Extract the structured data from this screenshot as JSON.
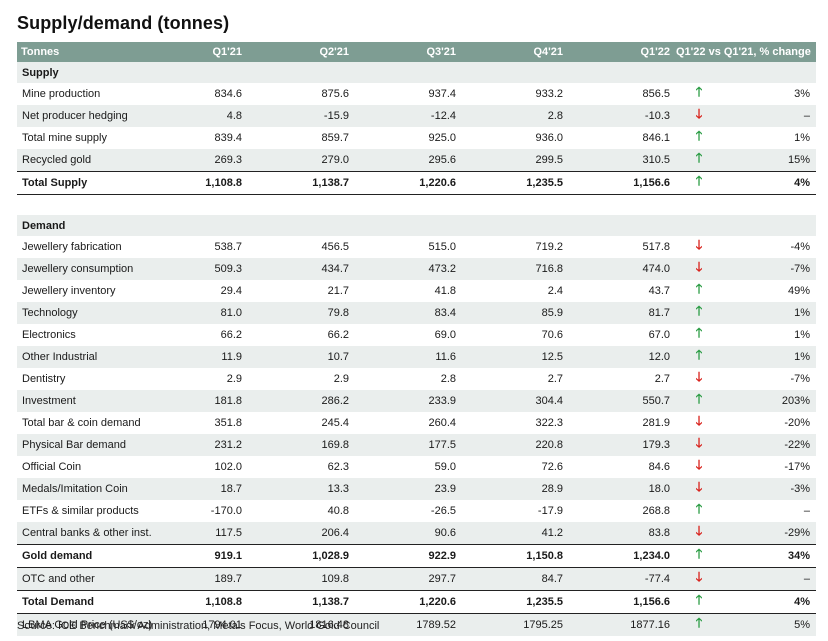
{
  "title": "Supply/demand (tonnes)",
  "header": {
    "label": "Tonnes",
    "cols": [
      "Q1'21",
      "Q2'21",
      "Q3'21",
      "Q4'21",
      "Q1'22"
    ],
    "change": "Q1'22 vs Q1'21, % change"
  },
  "supply": {
    "heading": "Supply",
    "rows": [
      {
        "label": "Mine production",
        "v": [
          "834.6",
          "875.6",
          "937.4",
          "933.2",
          "856.5"
        ],
        "dir": "up",
        "pct": "3%"
      },
      {
        "label": "Net producer hedging",
        "v": [
          "4.8",
          "-15.9",
          "-12.4",
          "2.8",
          "-10.3"
        ],
        "dir": "down",
        "pct": "–"
      },
      {
        "label": "Total mine supply",
        "v": [
          "839.4",
          "859.7",
          "925.0",
          "936.0",
          "846.1"
        ],
        "dir": "up",
        "pct": "1%"
      },
      {
        "label": "Recycled gold",
        "v": [
          "269.3",
          "279.0",
          "295.6",
          "299.5",
          "310.5"
        ],
        "dir": "up",
        "pct": "15%"
      }
    ],
    "total": {
      "label": "Total Supply",
      "v": [
        "1,108.8",
        "1,138.7",
        "1,220.6",
        "1,235.5",
        "1,156.6"
      ],
      "dir": "up",
      "pct": "4%"
    }
  },
  "demand": {
    "heading": "Demand",
    "rows": [
      {
        "label": "Jewellery fabrication",
        "v": [
          "538.7",
          "456.5",
          "515.0",
          "719.2",
          "517.8"
        ],
        "dir": "down",
        "pct": "-4%"
      },
      {
        "label": "Jewellery consumption",
        "v": [
          "509.3",
          "434.7",
          "473.2",
          "716.8",
          "474.0"
        ],
        "dir": "down",
        "pct": "-7%"
      },
      {
        "label": "Jewellery inventory",
        "v": [
          "29.4",
          "21.7",
          "41.8",
          "2.4",
          "43.7"
        ],
        "dir": "up",
        "pct": "49%"
      },
      {
        "label": "Technology",
        "v": [
          "81.0",
          "79.8",
          "83.4",
          "85.9",
          "81.7"
        ],
        "dir": "up",
        "pct": "1%"
      },
      {
        "label": "Electronics",
        "v": [
          "66.2",
          "66.2",
          "69.0",
          "70.6",
          "67.0"
        ],
        "dir": "up",
        "pct": "1%"
      },
      {
        "label": "Other Industrial",
        "v": [
          "11.9",
          "10.7",
          "11.6",
          "12.5",
          "12.0"
        ],
        "dir": "up",
        "pct": "1%"
      },
      {
        "label": "Dentistry",
        "v": [
          "2.9",
          "2.9",
          "2.8",
          "2.7",
          "2.7"
        ],
        "dir": "down",
        "pct": "-7%"
      },
      {
        "label": "Investment",
        "v": [
          "181.8",
          "286.2",
          "233.9",
          "304.4",
          "550.7"
        ],
        "dir": "up",
        "pct": "203%"
      },
      {
        "label": "Total bar & coin demand",
        "v": [
          "351.8",
          "245.4",
          "260.4",
          "322.3",
          "281.9"
        ],
        "dir": "down",
        "pct": "-20%"
      },
      {
        "label": "Physical Bar demand",
        "v": [
          "231.2",
          "169.8",
          "177.5",
          "220.8",
          "179.3"
        ],
        "dir": "down",
        "pct": "-22%"
      },
      {
        "label": "Official Coin",
        "v": [
          "102.0",
          "62.3",
          "59.0",
          "72.6",
          "84.6"
        ],
        "dir": "down",
        "pct": "-17%"
      },
      {
        "label": "Medals/Imitation Coin",
        "v": [
          "18.7",
          "13.3",
          "23.9",
          "28.9",
          "18.0"
        ],
        "dir": "down",
        "pct": "-3%"
      },
      {
        "label": "ETFs & similar products",
        "v": [
          "-170.0",
          "40.8",
          "-26.5",
          "-17.9",
          "268.8"
        ],
        "dir": "up",
        "pct": "–"
      },
      {
        "label": "Central banks & other inst.",
        "v": [
          "117.5",
          "206.4",
          "90.6",
          "41.2",
          "83.8"
        ],
        "dir": "down",
        "pct": "-29%"
      }
    ],
    "gold_demand": {
      "label": "Gold demand",
      "v": [
        "919.1",
        "1,028.9",
        "922.9",
        "1,150.8",
        "1,234.0"
      ],
      "dir": "up",
      "pct": "34%"
    },
    "otc": {
      "label": "OTC and other",
      "v": [
        "189.7",
        "109.8",
        "297.7",
        "84.7",
        "-77.4"
      ],
      "dir": "down",
      "pct": "–"
    },
    "total": {
      "label": "Total Demand",
      "v": [
        "1,108.8",
        "1,138.7",
        "1,220.6",
        "1,235.5",
        "1,156.6"
      ],
      "dir": "up",
      "pct": "4%"
    },
    "lbma": {
      "label": "LBMA Gold Price (US$/oz)",
      "v": [
        "1794.01",
        "1816.48",
        "1789.52",
        "1795.25",
        "1877.16"
      ],
      "dir": "up",
      "pct": "5%"
    }
  },
  "arrows": {
    "up": "🡑",
    "down": "🡓"
  },
  "colors": {
    "header_bg": "#7e9d93",
    "row_shade": "#eaeeed",
    "up": "#2e9e47",
    "down": "#d9231d"
  },
  "source": "Source: ICE Benchmark Administration, Metals Focus, World Gold Council"
}
